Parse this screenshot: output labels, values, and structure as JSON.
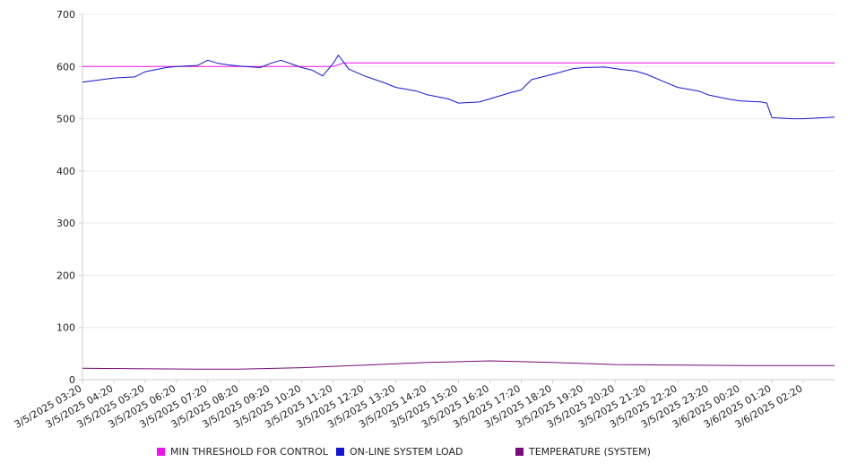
{
  "chart_data": {
    "type": "line",
    "title": "",
    "xlabel": "",
    "ylabel": "",
    "ylim": [
      0,
      700
    ],
    "yticks": [
      0,
      100,
      200,
      300,
      400,
      500,
      600,
      700
    ],
    "grid": true,
    "legend_position": "bottom",
    "x_tick_labels": [
      "3/5/2025 03:20",
      "3/5/2025 04:20",
      "3/5/2025 05:20",
      "3/5/2025 06:20",
      "3/5/2025 07:20",
      "3/5/2025 08:20",
      "3/5/2025 09:20",
      "3/5/2025 10:20",
      "3/5/2025 11:20",
      "3/5/2025 12:20",
      "3/5/2025 13:20",
      "3/5/2025 14:20",
      "3/5/2025 15:20",
      "3/5/2025 16:20",
      "3/5/2025 17:20",
      "3/5/2025 18:20",
      "3/5/2025 19:20",
      "3/5/2025 20:20",
      "3/5/2025 21:20",
      "3/5/2025 22:20",
      "3/5/2025 23:20",
      "3/6/2025 00:20",
      "3/6/2025 01:20",
      "3/6/2025 02:20"
    ],
    "series": [
      {
        "name": "MIN THRESHOLD FOR CONTROL",
        "color": "#ee11ee",
        "points": [
          [
            "3/5/2025 03:20",
            600
          ],
          [
            "3/5/2025 11:20",
            600
          ],
          [
            "3/5/2025 11:40",
            607
          ],
          [
            "3/6/2025 03:20",
            607
          ]
        ]
      },
      {
        "name": "ON-LINE SYSTEM LOAD",
        "color": "#1414d4",
        "points": [
          [
            "3/5/2025 03:20",
            570
          ],
          [
            "3/5/2025 04:20",
            578
          ],
          [
            "3/5/2025 05:00",
            580
          ],
          [
            "3/5/2025 05:20",
            590
          ],
          [
            "3/5/2025 06:00",
            598
          ],
          [
            "3/5/2025 06:20",
            600
          ],
          [
            "3/5/2025 07:00",
            602
          ],
          [
            "3/5/2025 07:20",
            612
          ],
          [
            "3/5/2025 07:40",
            606
          ],
          [
            "3/5/2025 08:00",
            603
          ],
          [
            "3/5/2025 08:20",
            601
          ],
          [
            "3/5/2025 09:00",
            598
          ],
          [
            "3/5/2025 09:20",
            606
          ],
          [
            "3/5/2025 09:40",
            612
          ],
          [
            "3/5/2025 10:00",
            605
          ],
          [
            "3/5/2025 10:20",
            598
          ],
          [
            "3/5/2025 10:40",
            593
          ],
          [
            "3/5/2025 11:00",
            582
          ],
          [
            "3/5/2025 11:20",
            606
          ],
          [
            "3/5/2025 11:30",
            622
          ],
          [
            "3/5/2025 11:50",
            595
          ],
          [
            "3/5/2025 12:20",
            582
          ],
          [
            "3/5/2025 13:00",
            568
          ],
          [
            "3/5/2025 13:20",
            560
          ],
          [
            "3/5/2025 14:00",
            553
          ],
          [
            "3/5/2025 14:20",
            546
          ],
          [
            "3/5/2025 15:00",
            538
          ],
          [
            "3/5/2025 15:20",
            530
          ],
          [
            "3/5/2025 16:00",
            532
          ],
          [
            "3/5/2025 16:20",
            538
          ],
          [
            "3/5/2025 17:00",
            550
          ],
          [
            "3/5/2025 17:20",
            555
          ],
          [
            "3/5/2025 17:40",
            575
          ],
          [
            "3/5/2025 18:20",
            585
          ],
          [
            "3/5/2025 19:00",
            596
          ],
          [
            "3/5/2025 19:20",
            598
          ],
          [
            "3/5/2025 20:00",
            599
          ],
          [
            "3/5/2025 20:20",
            596
          ],
          [
            "3/5/2025 21:00",
            591
          ],
          [
            "3/5/2025 21:20",
            585
          ],
          [
            "3/5/2025 22:00",
            568
          ],
          [
            "3/5/2025 22:20",
            560
          ],
          [
            "3/5/2025 23:00",
            553
          ],
          [
            "3/5/2025 23:20",
            545
          ],
          [
            "3/6/2025 00:00",
            537
          ],
          [
            "3/6/2025 00:20",
            534
          ],
          [
            "3/6/2025 01:00",
            532
          ],
          [
            "3/6/2025 01:10",
            530
          ],
          [
            "3/6/2025 01:20",
            502
          ],
          [
            "3/6/2025 02:00",
            500
          ],
          [
            "3/6/2025 02:20",
            500
          ],
          [
            "3/6/2025 03:20",
            503
          ]
        ]
      },
      {
        "name": "TEMPERATURE (SYSTEM)",
        "color": "#7a0a7a",
        "points": [
          [
            "3/5/2025 03:20",
            22
          ],
          [
            "3/5/2025 05:00",
            21
          ],
          [
            "3/5/2025 07:00",
            20
          ],
          [
            "3/5/2025 08:20",
            20
          ],
          [
            "3/5/2025 10:20",
            23
          ],
          [
            "3/5/2025 12:20",
            28
          ],
          [
            "3/5/2025 14:20",
            33
          ],
          [
            "3/5/2025 16:20",
            36
          ],
          [
            "3/5/2025 18:20",
            33
          ],
          [
            "3/5/2025 20:20",
            29
          ],
          [
            "3/5/2025 22:20",
            28
          ],
          [
            "3/6/2025 00:20",
            27
          ],
          [
            "3/6/2025 03:20",
            27
          ]
        ]
      }
    ]
  }
}
